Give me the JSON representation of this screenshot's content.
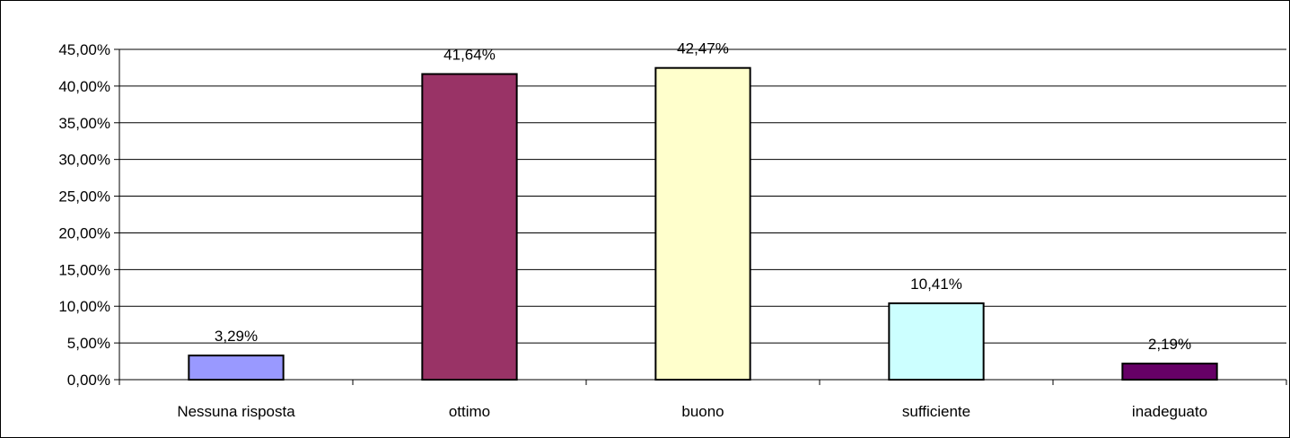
{
  "chart_data": {
    "type": "bar",
    "title": "",
    "xlabel": "",
    "ylabel": "",
    "categories": [
      "Nessuna risposta",
      "ottimo",
      "buono",
      "sufficiente",
      "inadeguato"
    ],
    "values": [
      3.29,
      41.64,
      42.47,
      10.41,
      2.19
    ],
    "data_labels": [
      "3,29%",
      "41,64%",
      "42,47%",
      "10,41%",
      "2,19%"
    ],
    "colors": [
      "#9999FF",
      "#993366",
      "#FFFFCC",
      "#CCFFFF",
      "#660066"
    ],
    "ylim": [
      0,
      45
    ],
    "yticks": [
      0,
      5,
      10,
      15,
      20,
      25,
      30,
      35,
      40,
      45
    ],
    "ytick_labels": [
      "0,00%",
      "5,00%",
      "10,00%",
      "15,00%",
      "20,00%",
      "25,00%",
      "30,00%",
      "35,00%",
      "40,00%",
      "45,00%"
    ],
    "grid": true,
    "legend": "none"
  }
}
